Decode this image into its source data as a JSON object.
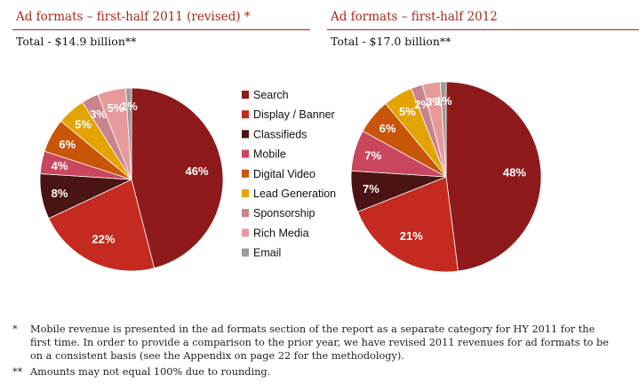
{
  "chart_data": [
    {
      "type": "pie",
      "title": "Ad formats – first-half 2011 (revised) *",
      "subtitle": "Total - $14.9 billion**",
      "categories": [
        "Search",
        "Display / Banner",
        "Classifieds",
        "Mobile",
        "Digital Video",
        "Lead Generation",
        "Sponsorship",
        "Rich Media",
        "Email"
      ],
      "values": [
        46,
        22,
        8,
        4,
        6,
        5,
        3,
        5,
        1
      ],
      "labels": [
        "46%",
        "22%",
        "8%",
        "4%",
        "6%",
        "5%",
        "3%",
        "5%",
        "1%"
      ]
    },
    {
      "type": "pie",
      "title": "Ad formats – first-half 2012",
      "subtitle": "Total - $17.0 billion**",
      "categories": [
        "Search",
        "Display / Banner",
        "Classifieds",
        "Mobile",
        "Digital Video",
        "Lead Generation",
        "Sponsorship",
        "Rich Media",
        "Email"
      ],
      "values": [
        48,
        21,
        7,
        7,
        6,
        5,
        2,
        3,
        1
      ],
      "labels": [
        "48%",
        "21%",
        "7%",
        "7%",
        "6%",
        "5%",
        "2%",
        "3%",
        "1%"
      ]
    }
  ],
  "legend": {
    "items": [
      {
        "label": "Search",
        "color": "#8e1a1c"
      },
      {
        "label": "Display / Banner",
        "color": "#c42a20"
      },
      {
        "label": "Classifieds",
        "color": "#4a1414"
      },
      {
        "label": "Mobile",
        "color": "#c9475e"
      },
      {
        "label": "Digital Video",
        "color": "#c95508"
      },
      {
        "label": "Lead Generation",
        "color": "#e3a400"
      },
      {
        "label": "Sponsorship",
        "color": "#c7848c"
      },
      {
        "label": "Rich Media",
        "color": "#e89a9a"
      },
      {
        "label": "Email",
        "color": "#9a9a9a"
      }
    ]
  },
  "footnotes": [
    {
      "mark": "*",
      "text": "Mobile revenue is presented in the ad formats section of the report as a separate category for HY 2011 for the first time. In order to provide a comparison to the prior year, we have revised 2011 revenues for ad formats to be on a consistent basis (see the Appendix on page 22 for the methodology)."
    },
    {
      "mark": "**",
      "text": "Amounts may not equal 100% due to rounding."
    }
  ]
}
